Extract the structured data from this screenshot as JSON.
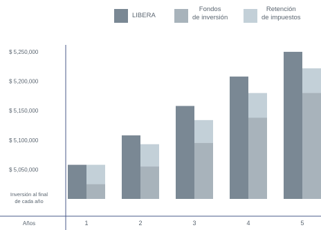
{
  "chart_data": {
    "type": "bar",
    "categories": [
      "1",
      "2",
      "3",
      "4",
      "5"
    ],
    "x_row_label": "Años",
    "y_bottom_label": "Inversión al final de cada año",
    "yticks": [
      "$ 5,050,000",
      "$ 5,100,000",
      "$ 5,150,000",
      "$ 5,200,000",
      "$ 5,250,000"
    ],
    "ytick_values": [
      5050000,
      5100000,
      5150000,
      5200000,
      5250000
    ],
    "ylim": [
      5000000,
      5270000
    ],
    "series": [
      {
        "name": "LIBERA",
        "color": "#7a8894",
        "values": [
          5058000,
          5108000,
          5158000,
          5208000,
          5250000
        ]
      },
      {
        "name": "Fondos\nde inversión",
        "color": "#a8b3bb",
        "values": [
          5025000,
          5055000,
          5095000,
          5138000,
          5180000
        ]
      },
      {
        "name": "Retención\nde impuestos",
        "color": "#c3d0d8",
        "values": [
          5058000,
          5093000,
          5134000,
          5180000,
          5222000
        ]
      }
    ],
    "legend_position": "top-right",
    "grid": false
  }
}
